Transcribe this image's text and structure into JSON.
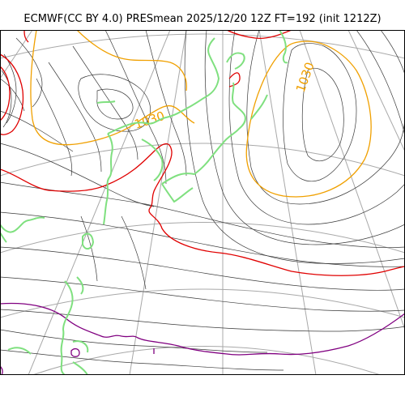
{
  "title": "ECMWF(CC BY 4.0) PRESmean 2025/12/20 12Z FT=192 (init 1212Z)",
  "contour_labels": [
    "1030",
    "1030"
  ],
  "colors": {
    "isobar": "#3a3a3a",
    "isobar_1030": "#f0a000",
    "isobar_1020": "#e00000",
    "isobar_1010": "#800080",
    "coastline": "#7fe07f",
    "graticule": "#a8a8a8",
    "frame": "#000000"
  }
}
